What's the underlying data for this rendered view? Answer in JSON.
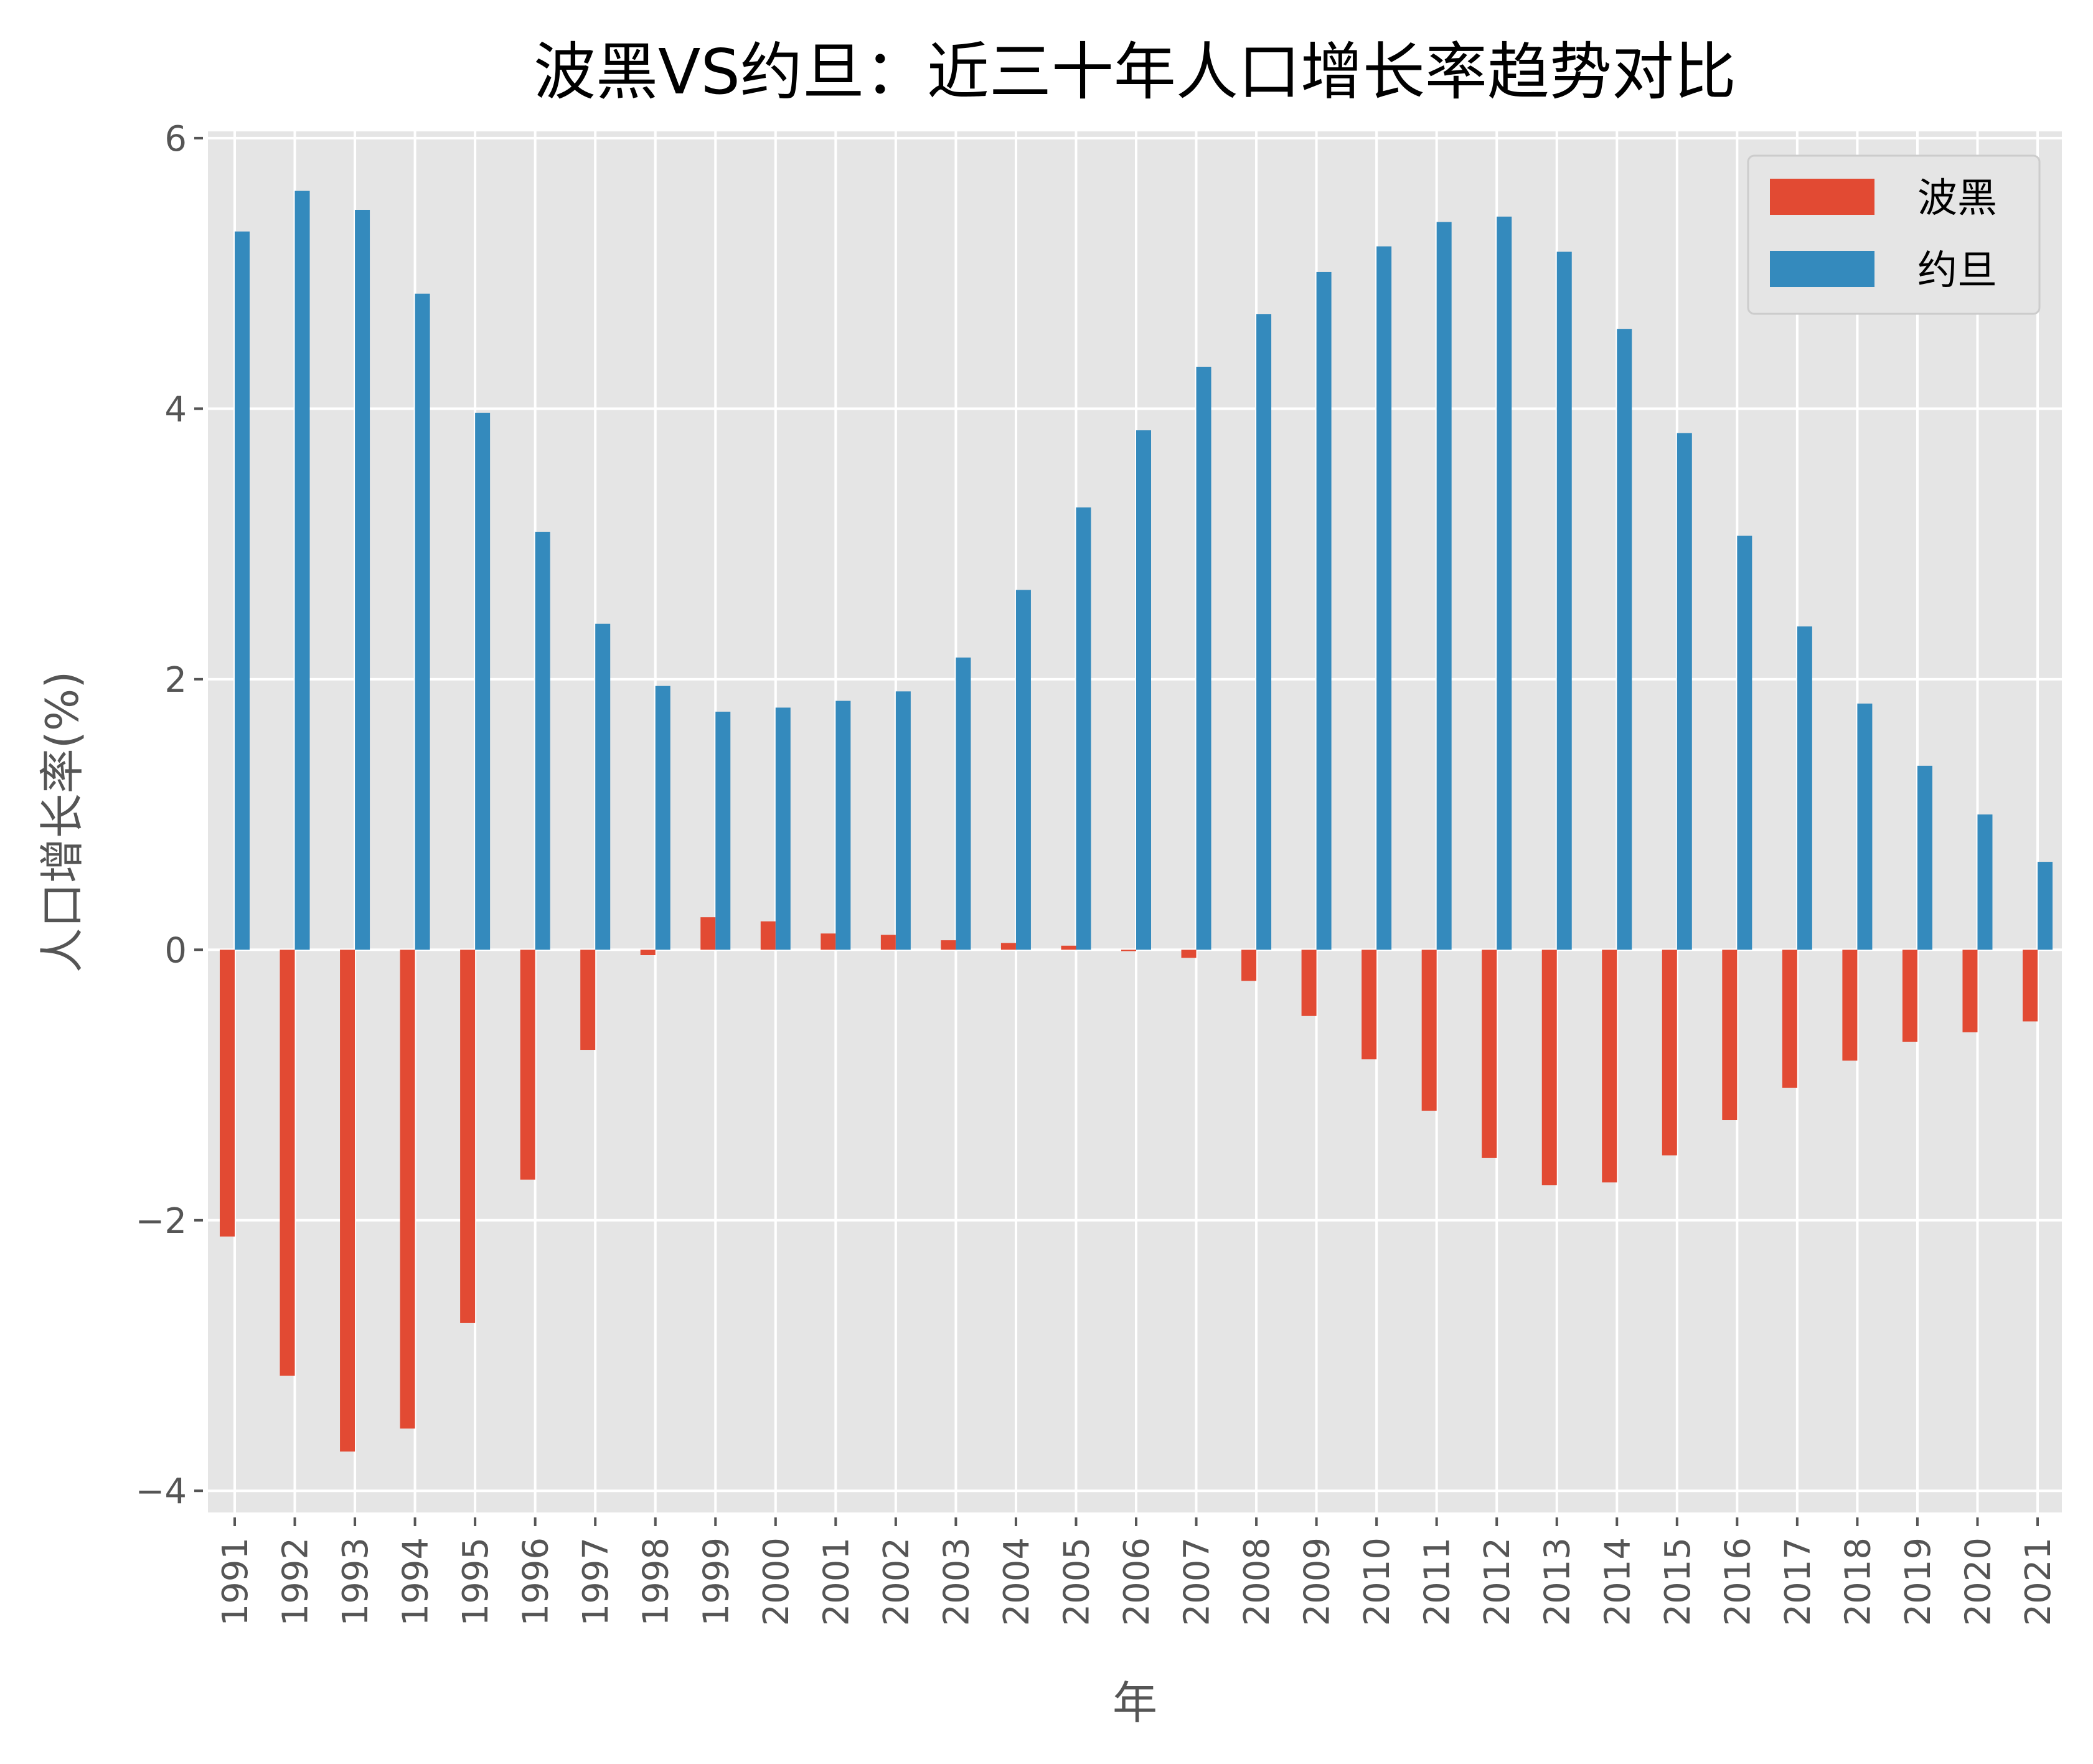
{
  "chart_data": {
    "type": "bar",
    "title": "波黑VS约旦：近三十年人口增长率趋势对比",
    "xlabel": "年",
    "ylabel": "人口增长率(%)",
    "ylim": [
      -4.16,
      6.05
    ],
    "yticks": [
      -4,
      -2,
      0,
      2,
      4,
      6
    ],
    "ytick_labels": [
      "−4",
      "−2",
      "0",
      "2",
      "4",
      "6"
    ],
    "grid": true,
    "legend_position": "top-right",
    "categories": [
      "1991",
      "1992",
      "1993",
      "1994",
      "1995",
      "1996",
      "1997",
      "1998",
      "1999",
      "2000",
      "2001",
      "2002",
      "2003",
      "2004",
      "2005",
      "2006",
      "2007",
      "2008",
      "2009",
      "2010",
      "2011",
      "2012",
      "2013",
      "2014",
      "2015",
      "2016",
      "2017",
      "2018",
      "2019",
      "2020",
      "2021"
    ],
    "series": [
      {
        "name": "波黑",
        "color": "#E24A33",
        "values": [
          -2.12,
          -3.15,
          -3.71,
          -3.54,
          -2.76,
          -1.7,
          -0.74,
          -0.04,
          0.24,
          0.21,
          0.12,
          0.11,
          0.07,
          0.05,
          0.03,
          -0.01,
          -0.06,
          -0.23,
          -0.49,
          -0.81,
          -1.19,
          -1.54,
          -1.74,
          -1.72,
          -1.52,
          -1.26,
          -1.02,
          -0.82,
          -0.68,
          -0.61,
          -0.53
        ]
      },
      {
        "name": "约旦",
        "color": "#348ABD",
        "values": [
          5.31,
          5.61,
          5.47,
          4.85,
          3.97,
          3.09,
          2.41,
          1.95,
          1.76,
          1.79,
          1.84,
          1.91,
          2.16,
          2.66,
          3.27,
          3.84,
          4.31,
          4.7,
          5.01,
          5.2,
          5.38,
          5.42,
          5.16,
          4.59,
          3.82,
          3.06,
          2.39,
          1.82,
          1.36,
          1.0,
          0.65
        ]
      }
    ]
  }
}
